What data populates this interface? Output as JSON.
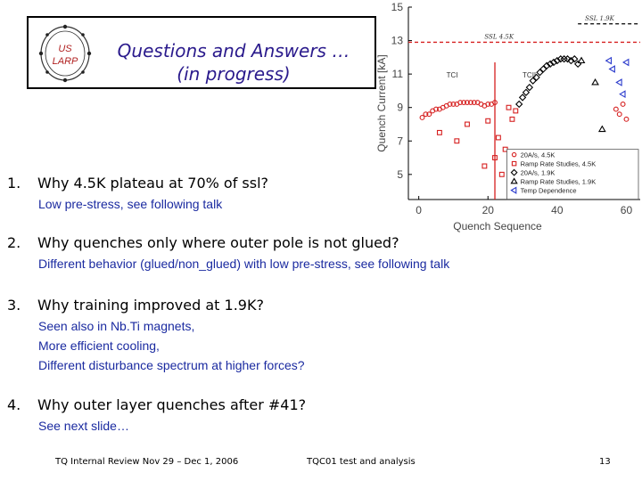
{
  "logo": {
    "line1": "US",
    "line2": "LARP"
  },
  "title": {
    "line1": "Questions and Answers …",
    "line2": "(in progress)"
  },
  "qa": [
    {
      "num": "1.",
      "question": "Why 4.5K plateau at 70% of ssl?",
      "answers": [
        "Low pre-stress, see following talk"
      ]
    },
    {
      "num": "2.",
      "question": "Why quenches only where outer pole is not glued?",
      "answers": [
        "Different behavior (glued/non_glued) with low pre-stress, see following talk"
      ]
    },
    {
      "num": "3.",
      "question": "Why training improved at 1.9K?",
      "answers": [
        "Seen also in Nb.Ti magnets,",
        "More efficient cooling,",
        "Different disturbance spectrum at higher forces?"
      ]
    },
    {
      "num": "4.",
      "question": "Why outer layer quenches after #41?",
      "answers": [
        "See next slide…"
      ]
    }
  ],
  "footer": {
    "left": "TQ Internal Review Nov 29 – Dec 1, 2006",
    "center": "TQC01 test and analysis",
    "page": "13"
  },
  "chart_data": {
    "type": "scatter",
    "xlabel": "Quench Sequence",
    "ylabel": "Quench Current [kA]",
    "xlim": [
      -3,
      64
    ],
    "ylim": [
      3.5,
      15
    ],
    "xticks": [
      0,
      20,
      40,
      60
    ],
    "yticks": [
      5,
      7,
      9,
      11,
      13,
      15
    ],
    "ref_lines": [
      {
        "label": "SSL 1.9K",
        "y": 14.0,
        "x_start": 46,
        "color": "#000000"
      },
      {
        "label": "SSL 4.5K",
        "y": 12.9,
        "x_start": -3,
        "color": "#d62020"
      }
    ],
    "regions": [
      {
        "label": "TCI",
        "x": 8,
        "y": 10.8
      },
      {
        "label": "TCII",
        "x": 30,
        "y": 10.8
      }
    ],
    "vline": {
      "x": 22,
      "y0": 3.5,
      "y1": 11.7,
      "color": "#d62020"
    },
    "legend_position": "bottom-right",
    "series": [
      {
        "name": "20A/s, 4.5K",
        "marker": "circle",
        "color": "#d62020",
        "points": [
          [
            1,
            8.4
          ],
          [
            2,
            8.6
          ],
          [
            3,
            8.6
          ],
          [
            4,
            8.8
          ],
          [
            5,
            8.9
          ],
          [
            6,
            8.9
          ],
          [
            7,
            9.0
          ],
          [
            8,
            9.1
          ],
          [
            9,
            9.2
          ],
          [
            10,
            9.2
          ],
          [
            11,
            9.2
          ],
          [
            12,
            9.3
          ],
          [
            13,
            9.3
          ],
          [
            14,
            9.3
          ],
          [
            15,
            9.3
          ],
          [
            16,
            9.3
          ],
          [
            17,
            9.3
          ],
          [
            18,
            9.2
          ],
          [
            19,
            9.1
          ],
          [
            20,
            9.2
          ],
          [
            21,
            9.2
          ],
          [
            22,
            9.3
          ],
          [
            57,
            8.9
          ],
          [
            58,
            8.6
          ],
          [
            59,
            9.2
          ],
          [
            60,
            8.3
          ]
        ]
      },
      {
        "name": "Ramp Rate Studies, 4.5K",
        "marker": "square",
        "color": "#d62020",
        "points": [
          [
            6,
            7.5
          ],
          [
            11,
            7.0
          ],
          [
            14,
            8.0
          ],
          [
            19,
            5.5
          ],
          [
            20,
            8.2
          ],
          [
            22,
            6.0
          ],
          [
            23,
            7.2
          ],
          [
            24,
            5.0
          ],
          [
            25,
            6.5
          ],
          [
            26,
            9.0
          ],
          [
            27,
            8.3
          ],
          [
            28,
            8.8
          ]
        ]
      },
      {
        "name": "20A/s, 1.9K",
        "marker": "diamond",
        "color": "#000000",
        "points": [
          [
            29,
            9.2
          ],
          [
            30,
            9.6
          ],
          [
            31,
            9.9
          ],
          [
            32,
            10.2
          ],
          [
            33,
            10.6
          ],
          [
            34,
            10.8
          ],
          [
            35,
            11.1
          ],
          [
            36,
            11.3
          ],
          [
            37,
            11.5
          ],
          [
            38,
            11.6
          ],
          [
            39,
            11.7
          ],
          [
            40,
            11.8
          ],
          [
            41,
            11.9
          ],
          [
            42,
            11.9
          ],
          [
            43,
            11.9
          ],
          [
            44,
            11.8
          ],
          [
            45,
            11.9
          ],
          [
            46,
            11.6
          ]
        ]
      },
      {
        "name": "Ramp Rate Studies, 1.9K",
        "marker": "triangle-up",
        "color": "#000000",
        "points": [
          [
            47,
            11.8
          ],
          [
            51,
            10.5
          ],
          [
            53,
            7.7
          ]
        ]
      },
      {
        "name": "Temp Dependence",
        "marker": "triangle-left",
        "color": "#2a3acc",
        "points": [
          [
            55,
            11.8
          ],
          [
            56,
            11.3
          ],
          [
            58,
            10.5
          ],
          [
            59,
            9.8
          ],
          [
            60,
            11.7
          ]
        ]
      }
    ]
  }
}
